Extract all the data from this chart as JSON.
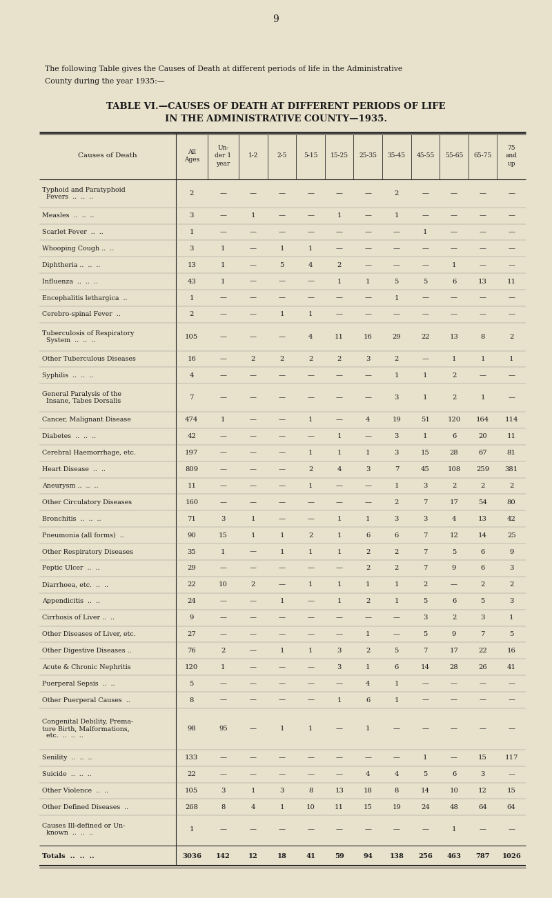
{
  "page_number": "9",
  "intro_text_line1": "The following Table gives the Causes of Death at different periods of life in the Administrative",
  "intro_text_line2": "County during the year 1935:—",
  "title_line1": "TABLE VI.—CAUSES OF DEATH AT DIFFERENT PERIODS OF LIFE",
  "title_line2": "IN THE ADMINISTRATIVE COUNTY—1935.",
  "rows": [
    [
      "Typhoid and Paratyphoid\n  Fevers  ..  ..  ..",
      "2",
      "—",
      "—",
      "—",
      "—",
      "—",
      "—",
      "2",
      "—",
      "—",
      "—",
      "—"
    ],
    [
      "Measles  ..  ..  ..",
      "3",
      "—",
      "1",
      "—",
      "—",
      "1",
      "—",
      "1",
      "—",
      "—",
      "—",
      "—"
    ],
    [
      "Scarlet Fever  ..  ..",
      "1",
      "—",
      "—",
      "—",
      "—",
      "—",
      "—",
      "—",
      "1",
      "—",
      "—",
      "—"
    ],
    [
      "Whooping Cough ..  ..",
      "3",
      "1",
      "—",
      "1",
      "1",
      "—",
      "—",
      "—",
      "—",
      "—",
      "—",
      "—"
    ],
    [
      "Diphtheria ..  ..  ..",
      "13",
      "1",
      "—",
      "5",
      "4",
      "2",
      "—",
      "—",
      "—",
      "1",
      "—",
      "—"
    ],
    [
      "Influenza  ..  ..  ..",
      "43",
      "1",
      "—",
      "—",
      "—",
      "1",
      "1",
      "5",
      "5",
      "6",
      "13",
      "11"
    ],
    [
      "Encephalitis lethargica  ..",
      "1",
      "—",
      "—",
      "—",
      "—",
      "—",
      "—",
      "1",
      "—",
      "—",
      "—",
      "—"
    ],
    [
      "Cerebro-spinal Fever  ..",
      "2",
      "—",
      "—",
      "1",
      "1",
      "—",
      "—",
      "—",
      "—",
      "—",
      "—",
      "—"
    ],
    [
      "Tuberculosis of Respiratory\n  System  ..  ..  ..",
      "105",
      "—",
      "—",
      "—",
      "4",
      "11",
      "16",
      "29",
      "22",
      "13",
      "8",
      "2"
    ],
    [
      "Other Tuberculous Diseases",
      "16",
      "—",
      "2",
      "2",
      "2",
      "2",
      "3",
      "2",
      "—",
      "1",
      "1",
      "1"
    ],
    [
      "Syphilis  ..  ..  ..",
      "4",
      "—",
      "—",
      "—",
      "—",
      "—",
      "—",
      "1",
      "1",
      "2",
      "—",
      "—"
    ],
    [
      "General Paralysis of the\n  Insane, Tabes Dorsalis",
      "7",
      "—",
      "—",
      "—",
      "—",
      "—",
      "—",
      "3",
      "1",
      "2",
      "1",
      "—"
    ],
    [
      "Cancer, Malignant Disease",
      "474",
      "1",
      "—",
      "—",
      "1",
      "—",
      "4",
      "19",
      "51",
      "120",
      "164",
      "114"
    ],
    [
      "Diabetes  ..  ..  ..",
      "42",
      "—",
      "—",
      "—",
      "—",
      "1",
      "—",
      "3",
      "1",
      "6",
      "20",
      "11"
    ],
    [
      "Cerebral Haemorrhage, etc.",
      "197",
      "—",
      "—",
      "—",
      "1",
      "1",
      "1",
      "3",
      "15",
      "28",
      "67",
      "81"
    ],
    [
      "Heart Disease  ..  ..",
      "809",
      "—",
      "—",
      "—",
      "2",
      "4",
      "3",
      "7",
      "45",
      "108",
      "259",
      "381"
    ],
    [
      "Aneurysm ..  ..  ..",
      "11",
      "—",
      "—",
      "—",
      "1",
      "—",
      "—",
      "1",
      "3",
      "2",
      "2",
      "2"
    ],
    [
      "Other Circulatory Diseases",
      "160",
      "—",
      "—",
      "—",
      "—",
      "—",
      "—",
      "2",
      "7",
      "17",
      "54",
      "80"
    ],
    [
      "Bronchitis  ..  ..  ..",
      "71",
      "3",
      "1",
      "—",
      "—",
      "1",
      "1",
      "3",
      "3",
      "4",
      "13",
      "42"
    ],
    [
      "Pneumonia (all forms)  ..",
      "90",
      "15",
      "1",
      "1",
      "2",
      "1",
      "6",
      "6",
      "7",
      "12",
      "14",
      "25"
    ],
    [
      "Other Respiratory Diseases",
      "35",
      "1",
      "—",
      "1",
      "1",
      "1",
      "2",
      "2",
      "7",
      "5",
      "6",
      "9"
    ],
    [
      "Peptic Ulcer  ..  ..",
      "29",
      "—",
      "—",
      "—",
      "—",
      "—",
      "2",
      "2",
      "7",
      "9",
      "6",
      "3"
    ],
    [
      "Diarrhoea, etc.  ..  ..",
      "22",
      "10",
      "2",
      "—",
      "1",
      "1",
      "1",
      "1",
      "2",
      "—",
      "2",
      "2"
    ],
    [
      "Appendicitis  ..  ..",
      "24",
      "—",
      "—",
      "1",
      "—",
      "1",
      "2",
      "1",
      "5",
      "6",
      "5",
      "3"
    ],
    [
      "Cirrhosis of Liver ..  ..",
      "9",
      "—",
      "—",
      "—",
      "—",
      "—",
      "—",
      "—",
      "3",
      "2",
      "3",
      "1"
    ],
    [
      "Other Diseases of Liver, etc.",
      "27",
      "—",
      "—",
      "—",
      "—",
      "—",
      "1",
      "—",
      "5",
      "9",
      "7",
      "5"
    ],
    [
      "Other Digestive Diseases ..",
      "76",
      "2",
      "—",
      "1",
      "1",
      "3",
      "2",
      "5",
      "7",
      "17",
      "22",
      "16"
    ],
    [
      "Acute & Chronic Nephritis",
      "120",
      "1",
      "—",
      "—",
      "—",
      "3",
      "1",
      "6",
      "14",
      "28",
      "26",
      "41"
    ],
    [
      "Puerperal Sepsis  ..  ..",
      "5",
      "—",
      "—",
      "—",
      "—",
      "—",
      "4",
      "1",
      "—",
      "—",
      "—",
      "—"
    ],
    [
      "Other Puerperal Causes  ..",
      "8",
      "—",
      "—",
      "—",
      "—",
      "1",
      "6",
      "1",
      "—",
      "—",
      "—",
      "—"
    ],
    [
      "Congenital Debility, Prema-\nture Birth, Malformations,\n  etc.  ..  ..  ..",
      "98",
      "95",
      "—",
      "1",
      "1",
      "—",
      "1",
      "—",
      "—",
      "—",
      "—",
      "—"
    ],
    [
      "Senility  ..  ..  ..",
      "133",
      "—",
      "—",
      "—",
      "—",
      "—",
      "—",
      "—",
      "1",
      "—",
      "15",
      "117"
    ],
    [
      "Suicide  ..  ..  ..",
      "22",
      "—",
      "—",
      "—",
      "—",
      "—",
      "4",
      "4",
      "5",
      "6",
      "3",
      "—"
    ],
    [
      "Other Violence  ..  ..",
      "105",
      "3",
      "1",
      "3",
      "8",
      "13",
      "18",
      "8",
      "14",
      "10",
      "12",
      "15"
    ],
    [
      "Other Defined Diseases  ..",
      "268",
      "8",
      "4",
      "1",
      "10",
      "11",
      "15",
      "19",
      "24",
      "48",
      "64",
      "64"
    ],
    [
      "Causes Ill-defined or Un-\n  known  ..  ..  ..",
      "1",
      "—",
      "—",
      "—",
      "—",
      "—",
      "—",
      "—",
      "—",
      "1",
      "—",
      "—"
    ]
  ],
  "totals_row": [
    "Totals  ..  ..  ..",
    "3036",
    "142",
    "12",
    "18",
    "41",
    "59",
    "94",
    "138",
    "256",
    "463",
    "787",
    "1026"
  ],
  "bg_color": "#e8e1cc",
  "text_color": "#1a1a1a",
  "line_color": "#2a2a2a",
  "col_header_texts": [
    "All\nAges",
    "Un-\nder 1\nyear",
    "1-2",
    "2-5",
    "5-15",
    "15-25",
    "25-35",
    "35-45",
    "45-55",
    "55-65",
    "65-75",
    "75\nand\nup"
  ],
  "multiline_3": [
    30
  ],
  "multiline_2": [
    0,
    8,
    11,
    35
  ]
}
